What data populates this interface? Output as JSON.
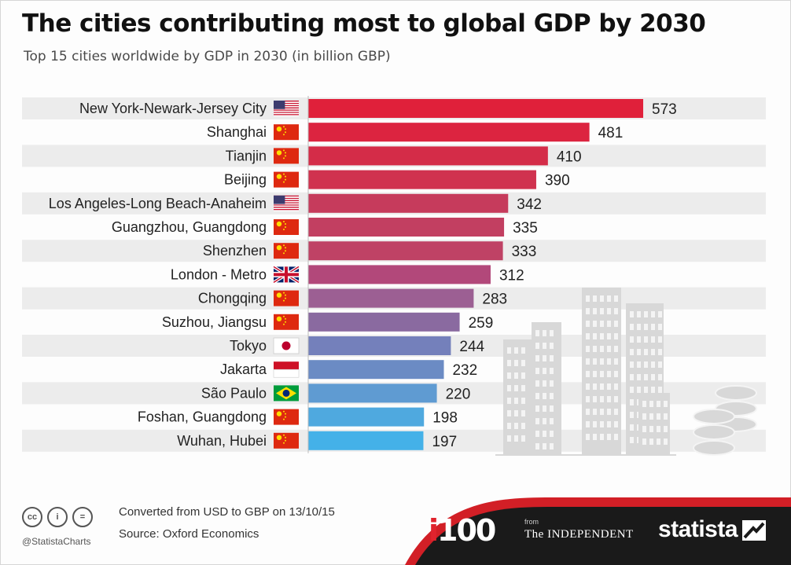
{
  "title": "The cities contributing most to global GDP by 2030",
  "subtitle": "Top 15 cities worldwide by GDP in 2030 (in billion GBP)",
  "chart_data": {
    "type": "bar",
    "orientation": "horizontal",
    "title": "The cities contributing most to global GDP by 2030",
    "subtitle": "Top 15 cities worldwide by GDP in 2030 (in billion GBP)",
    "categories": [
      "New York-Newark-Jersey City",
      "Shanghai",
      "Tianjin",
      "Beijing",
      "Los Angeles-Long Beach-Anaheim",
      "Guangzhou, Guangdong",
      "Shenzhen",
      "London - Metro",
      "Chongqing",
      "Suzhou, Jiangsu",
      "Tokyo",
      "Jakarta",
      "São Paulo",
      "Foshan, Guangdong",
      "Wuhan, Hubei"
    ],
    "flags": [
      "usa",
      "china",
      "china",
      "china",
      "usa",
      "china",
      "china",
      "uk",
      "china",
      "china",
      "japan",
      "indonesia",
      "brazil",
      "china",
      "china"
    ],
    "values": [
      573,
      481,
      410,
      390,
      342,
      335,
      333,
      312,
      283,
      259,
      244,
      232,
      220,
      198,
      197
    ],
    "bar_colors": [
      "#e0203a",
      "#dc2440",
      "#d42c48",
      "#d0324f",
      "#c63b5c",
      "#c23f61",
      "#bf4265",
      "#b2487a",
      "#9c5f93",
      "#8a6aa0",
      "#7480bb",
      "#6b8bc4",
      "#5f9bd2",
      "#4fa9df",
      "#44b1e8"
    ],
    "xlim": [
      0,
      600
    ],
    "grid": false,
    "legend": "none"
  },
  "footer": {
    "note": "Converted from USD to GBP on 13/10/15",
    "source": "Source: Oxford Economics",
    "handle": "@StatistaCharts",
    "cc_icons": [
      "cc-icon",
      "by-icon",
      "nd-icon"
    ],
    "cc_glyphs": [
      "cc",
      "i",
      "="
    ],
    "i100_letter": "i",
    "i100_number": "100",
    "from": "from",
    "independent": "The INDEPENDENT",
    "statista": "statista"
  },
  "colors": {
    "row_band": "#ececec",
    "footer_dark": "#1a1a1a",
    "footer_red": "#d21f26",
    "buildings": "#d8d8d8"
  }
}
